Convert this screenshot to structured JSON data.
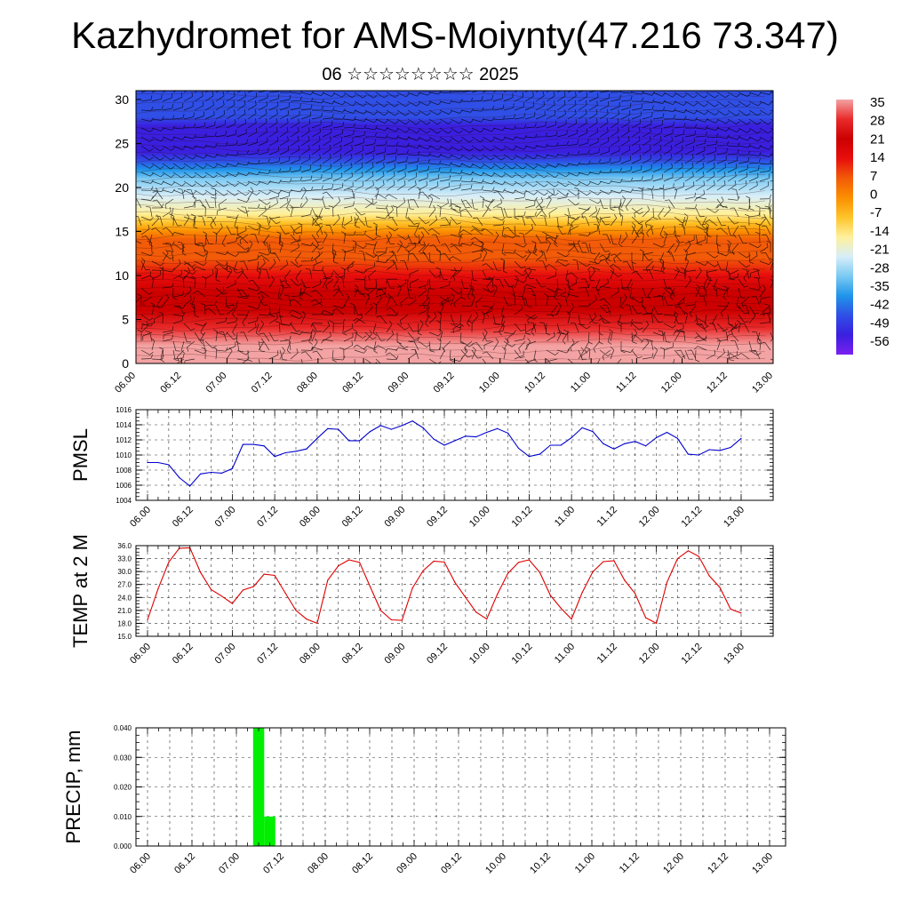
{
  "title": "Kazhydromet for AMS-Moiynty(47.216 73.347)",
  "subtitle": "06 ☆☆☆☆☆☆☆☆ 2025",
  "chart_data": [
    {
      "type": "heatmap",
      "title": "",
      "xlabel": "",
      "ylabel": "",
      "x_ticks": [
        "06.00",
        "06.12",
        "07.00",
        "07.12",
        "08.00",
        "08.12",
        "09.00",
        "09.12",
        "10.00",
        "10.12",
        "11.00",
        "11.12",
        "12.00",
        "12.12",
        "13.00"
      ],
      "y_ticks": [
        0,
        5,
        10,
        15,
        20,
        25,
        30
      ],
      "ylim": [
        0,
        31
      ],
      "levels_profile": {
        "height": [
          0,
          2,
          4,
          6,
          8,
          10,
          12,
          14,
          15,
          16,
          17,
          19,
          21,
          22,
          23,
          24,
          25,
          26,
          27,
          28,
          29,
          31
        ],
        "value": [
          33,
          28,
          24,
          20,
          16,
          11,
          5,
          0,
          -5,
          -10,
          -16,
          -25,
          -33,
          -38,
          -45,
          -50,
          -54,
          -53,
          -51,
          -49,
          -48,
          -47
        ]
      },
      "wind_barbs": true,
      "colorbar": {
        "labels": [
          "35",
          "28",
          "21",
          "14",
          "7",
          "0",
          "-7",
          "-14",
          "-21",
          "-28",
          "-35",
          "-42",
          "-49",
          "-56"
        ],
        "colors": [
          "#f3a3a3",
          "#e92a2a",
          "#cc0000",
          "#e80d0d",
          "#f25b08",
          "#fb8f00",
          "#ffc42a",
          "#fff09a",
          "#d8eef8",
          "#7ccaf3",
          "#1f95ea",
          "#2f4fe6",
          "#3a1fdf",
          "#7b20f0"
        ]
      }
    },
    {
      "type": "line",
      "ylabel": "PMSL",
      "ylim": [
        1004,
        1016
      ],
      "y_ticks": [
        "1004",
        "1006",
        "1008",
        "1010",
        "1012",
        "1014",
        "1016"
      ],
      "x_ticks": [
        "06.00",
        "06.12",
        "07.00",
        "07.12",
        "08.00",
        "08.12",
        "09.00",
        "09.12",
        "10.00",
        "10.12",
        "11.00",
        "11.12",
        "12.00",
        "12.12",
        "13.00"
      ],
      "grid": true,
      "series": [
        {
          "color": "#0000cc",
          "values": [
            1009.0,
            1009.0,
            1008.7,
            1007.0,
            1005.9,
            1007.5,
            1007.7,
            1007.6,
            1008.2,
            1011.4,
            1011.4,
            1011.2,
            1009.8,
            1010.3,
            1010.5,
            1010.8,
            1012.2,
            1013.5,
            1013.4,
            1011.9,
            1011.9,
            1013.1,
            1013.9,
            1013.4,
            1013.9,
            1014.5,
            1013.6,
            1012.1,
            1011.3,
            1011.9,
            1012.5,
            1012.4,
            1013.0,
            1013.5,
            1012.9,
            1010.9,
            1009.8,
            1010.1,
            1011.3,
            1011.3,
            1012.3,
            1013.6,
            1013.1,
            1011.5,
            1010.8,
            1011.5,
            1011.8,
            1011.2,
            1012.3,
            1013.0,
            1012.2,
            1010.1,
            1010.0,
            1010.7,
            1010.6,
            1011.0,
            1012.2
          ]
        }
      ]
    },
    {
      "type": "line",
      "ylabel": "TEMP at 2 M",
      "ylim": [
        15,
        36
      ],
      "y_ticks": [
        "15.0",
        "18.0",
        "21.0",
        "24.0",
        "27.0",
        "30.0",
        "33.0",
        "36.0"
      ],
      "x_ticks": [
        "06.00",
        "06.12",
        "07.00",
        "07.12",
        "08.00",
        "08.12",
        "09.00",
        "09.12",
        "10.00",
        "10.12",
        "11.00",
        "11.12",
        "12.00",
        "12.12",
        "13.00"
      ],
      "grid": true,
      "series": [
        {
          "color": "#dd0000",
          "values": [
            18.8,
            26.0,
            32.2,
            35.4,
            35.5,
            29.8,
            25.8,
            24.3,
            22.6,
            25.7,
            26.5,
            29.4,
            29.1,
            25.0,
            21.0,
            19.0,
            18.0,
            28.0,
            31.3,
            32.7,
            32.1,
            26.5,
            21.0,
            18.8,
            18.7,
            26.2,
            30.2,
            32.4,
            32.2,
            27.5,
            24.0,
            20.6,
            19.0,
            24.7,
            29.6,
            32.1,
            32.7,
            29.8,
            24.5,
            21.5,
            19.0,
            25.1,
            29.9,
            32.3,
            32.5,
            28.0,
            24.9,
            19.3,
            18.0,
            27.5,
            33.0,
            34.8,
            33.5,
            29.0,
            26.3,
            21.3,
            20.4
          ]
        }
      ]
    },
    {
      "type": "bar",
      "ylabel": "PRECIP, mm",
      "ylim": [
        0,
        0.04
      ],
      "y_ticks": [
        "0.000",
        "0.010",
        "0.020",
        "0.030",
        "0.040"
      ],
      "x_ticks": [
        "06.00",
        "06.12",
        "07.00",
        "07.12",
        "08.00",
        "08.12",
        "09.00",
        "09.12",
        "10.00",
        "10.12",
        "11.00",
        "11.12",
        "12.00",
        "12.12",
        "13.00"
      ],
      "grid": true,
      "bar_color": "#00ee00",
      "values": [
        0,
        0,
        0,
        0,
        0,
        0,
        0,
        0,
        0,
        0,
        0.04,
        0.01,
        0,
        0,
        0,
        0,
        0,
        0,
        0,
        0,
        0,
        0,
        0,
        0,
        0,
        0,
        0,
        0,
        0,
        0,
        0,
        0,
        0,
        0,
        0,
        0,
        0,
        0,
        0,
        0,
        0,
        0,
        0,
        0,
        0,
        0,
        0,
        0,
        0,
        0,
        0,
        0,
        0,
        0,
        0,
        0,
        0
      ]
    }
  ]
}
